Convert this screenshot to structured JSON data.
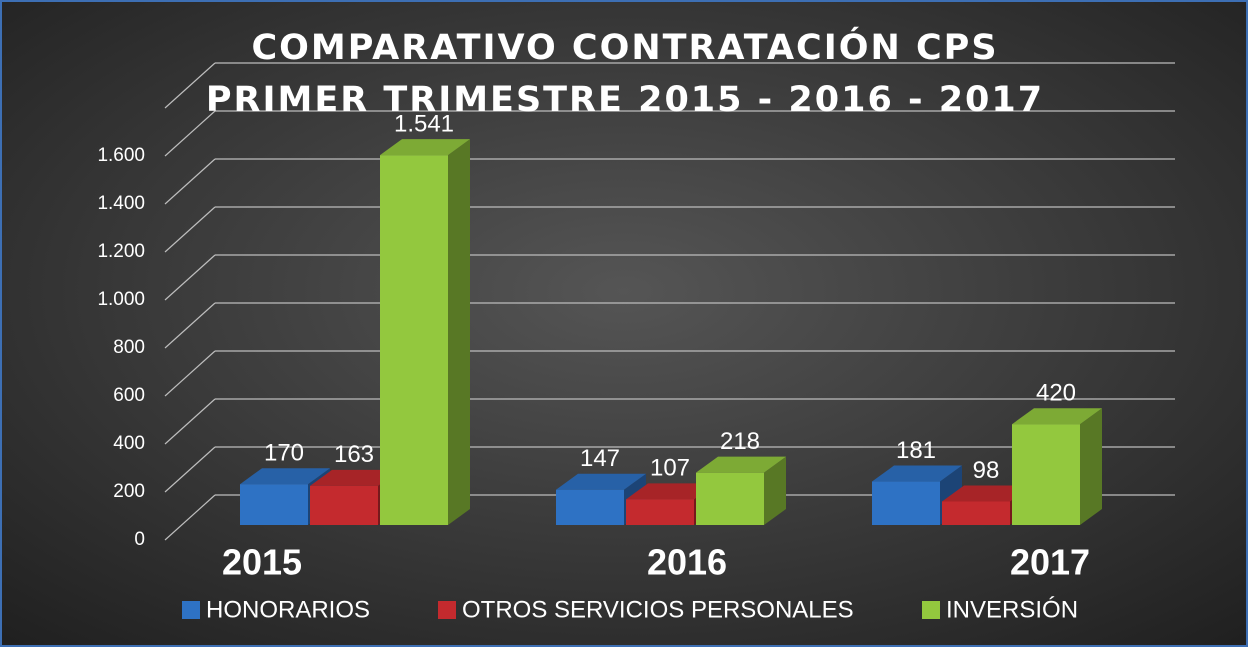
{
  "chart_data": {
    "type": "bar3d",
    "title": "COMPARATIVO CONTRATACIÓN  CPS  PRIMER TRIMESTRE 2015 - 2016 -  2017",
    "categories": [
      "2015",
      "2016",
      "2017"
    ],
    "series": [
      {
        "name": "HONORARIOS",
        "color": "#2e72c4",
        "values": [
          170,
          147,
          181
        ]
      },
      {
        "name": "OTROS SERVICIOS PERSONALES",
        "color": "#c42a2e",
        "values": [
          163,
          107,
          98
        ]
      },
      {
        "name": "INVERSIÓN",
        "color": "#93c83e",
        "values": [
          1541,
          218,
          420
        ],
        "value_labels": [
          "1.541",
          "218",
          "420"
        ]
      }
    ],
    "ylim": [
      0,
      1800
    ],
    "yticks": [
      0,
      200,
      400,
      600,
      800,
      {
        "value": 1000,
        "label": "1.000"
      },
      {
        "value": 1200,
        "label": "1.200"
      },
      {
        "value": 1400,
        "label": "1.400"
      },
      {
        "value": 1600,
        "label": "1.600"
      }
    ],
    "grid": true,
    "legend": "bottom"
  }
}
